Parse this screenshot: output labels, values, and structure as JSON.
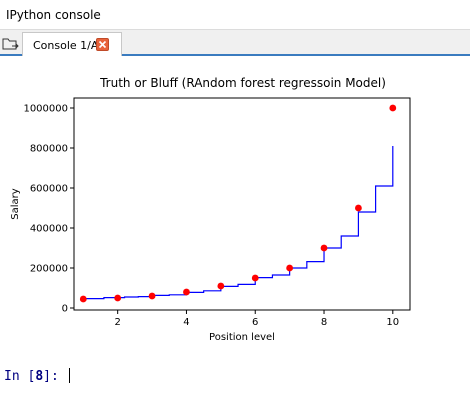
{
  "window": {
    "title": "IPython console"
  },
  "tabs": [
    {
      "label": "Console 1/A",
      "active": true
    }
  ],
  "console": {
    "prompt_label": "In [",
    "prompt_number": "8",
    "prompt_suffix": "]:"
  },
  "colors": {
    "tab_accent": "#3a7bbf",
    "line": "#0000ff",
    "points": "#ff0000"
  },
  "icons": {
    "browse": "folder-icon",
    "close": "close-icon"
  },
  "chart_data": {
    "type": "scatter",
    "title": "Truth or Bluff (RAndom forest regressoin  Model)",
    "xlabel": "Position level",
    "ylabel": "Salary",
    "xlim": [
      0.73,
      10.5
    ],
    "ylim": [
      -10000,
      1050000
    ],
    "x_ticks": [
      2,
      4,
      6,
      8,
      10
    ],
    "y_ticks": [
      0,
      200000,
      400000,
      600000,
      800000,
      1000000
    ],
    "x_tick_labels": [
      "2",
      "4",
      "6",
      "8",
      "10"
    ],
    "y_tick_labels": [
      "0",
      "200000",
      "400000",
      "600000",
      "800000",
      "1000000"
    ],
    "series": [
      {
        "kind": "scatter",
        "color": "#ff0000",
        "x": [
          1,
          2,
          3,
          4,
          5,
          6,
          7,
          8,
          9,
          10
        ],
        "y": [
          45000,
          50000,
          60000,
          80000,
          110000,
          150000,
          200000,
          300000,
          500000,
          1000000
        ]
      },
      {
        "kind": "step",
        "color": "#0000ff",
        "x": [
          1,
          1.6,
          2.2,
          2.6,
          3.0,
          3.5,
          4.0,
          4.5,
          5.0,
          5.5,
          6.0,
          6.5,
          7.0,
          7.5,
          8.0,
          8.5,
          9.0,
          9.5,
          10.0
        ],
        "y": [
          47000,
          52000,
          55000,
          57000,
          63000,
          66000,
          78000,
          86000,
          108000,
          118000,
          152000,
          165000,
          200000,
          232000,
          300000,
          360000,
          480000,
          610000,
          810000
        ]
      }
    ]
  }
}
